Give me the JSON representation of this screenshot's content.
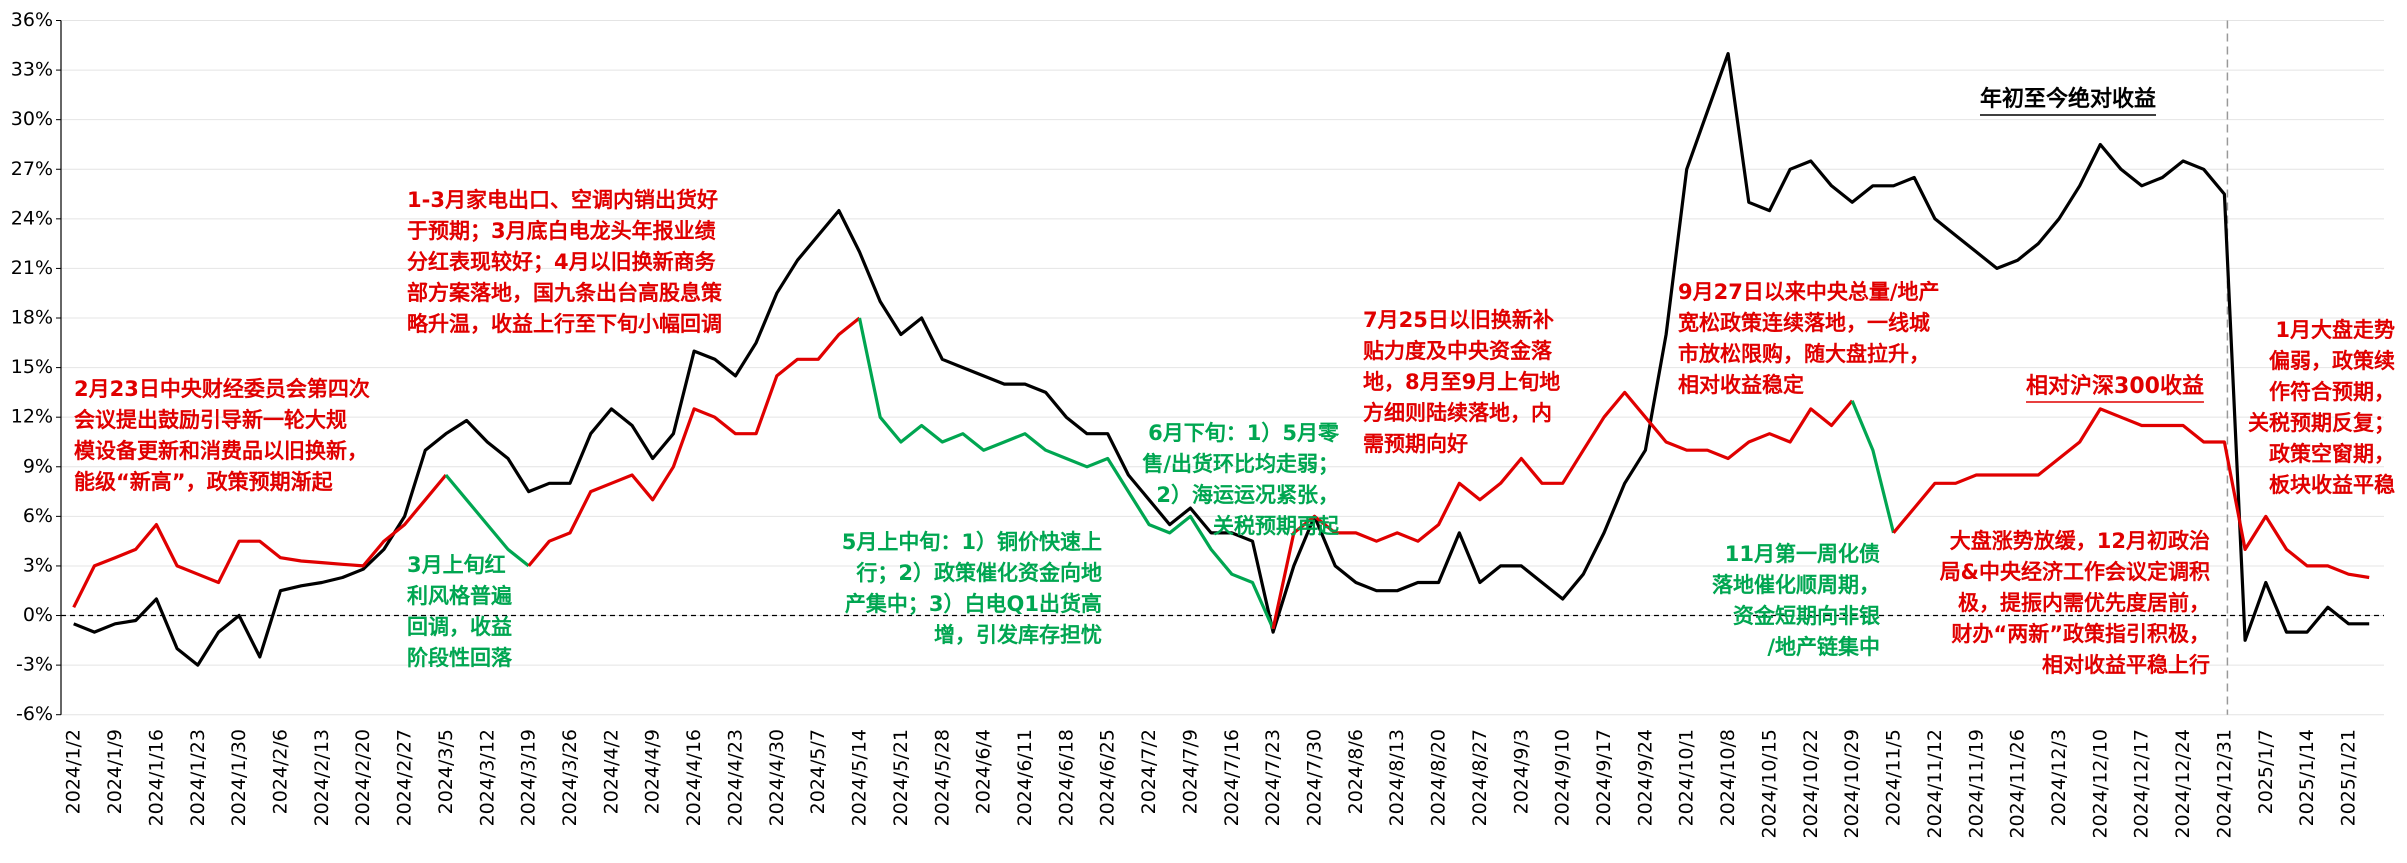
{
  "chart_data": {
    "type": "line",
    "categories": [
      "2024/1/2",
      null,
      "2024/1/9",
      null,
      "2024/1/16",
      null,
      "2024/1/23",
      null,
      "2024/1/30",
      null,
      "2024/2/6",
      null,
      "2024/2/13",
      null,
      "2024/2/20",
      null,
      "2024/2/27",
      null,
      "2024/3/5",
      null,
      "2024/3/12",
      null,
      "2024/3/19",
      null,
      "2024/3/26",
      null,
      "2024/4/2",
      null,
      "2024/4/9",
      null,
      "2024/4/16",
      null,
      "2024/4/23",
      null,
      "2024/4/30",
      null,
      "2024/5/7",
      null,
      "2024/5/14",
      null,
      "2024/5/21",
      null,
      "2024/5/28",
      null,
      "2024/6/4",
      null,
      "2024/6/11",
      null,
      "2024/6/18",
      null,
      "2024/6/25",
      null,
      "2024/7/2",
      null,
      "2024/7/9",
      null,
      "2024/7/16",
      null,
      "2024/7/23",
      null,
      "2024/7/30",
      null,
      "2024/8/6",
      null,
      "2024/8/13",
      null,
      "2024/8/20",
      null,
      "2024/8/27",
      null,
      "2024/9/3",
      null,
      "2024/9/10",
      null,
      "2024/9/17",
      null,
      "2024/9/24",
      null,
      "2024/10/1",
      null,
      "2024/10/8",
      null,
      "2024/10/15",
      null,
      "2024/10/22",
      null,
      "2024/10/29",
      null,
      "2024/11/5",
      null,
      "2024/11/12",
      null,
      "2024/11/19",
      null,
      "2024/11/26",
      null,
      "2024/12/3",
      null,
      "2024/12/10",
      null,
      "2024/12/17",
      null,
      "2024/12/24",
      null,
      "2024/12/31",
      null,
      "2025/1/7",
      null,
      "2025/1/14",
      null,
      "2025/1/21",
      null
    ],
    "series": [
      {
        "name": "年初至今绝对收益",
        "color": "#000000",
        "values": [
          -0.5,
          -1,
          -0.5,
          -0.3,
          1,
          -2,
          -3,
          -1,
          0,
          -2.5,
          1.5,
          1.8,
          2,
          2.3,
          2.8,
          4,
          6,
          10,
          11,
          11.8,
          10.5,
          9.5,
          7.5,
          8,
          8,
          11,
          12.5,
          11.5,
          9.5,
          11,
          16,
          15.5,
          14.5,
          16.5,
          19.5,
          21.5,
          23,
          24.5,
          22,
          19,
          17,
          18,
          15.5,
          15,
          14.5,
          14,
          14,
          13.5,
          12,
          11,
          11,
          8.5,
          7,
          5.5,
          6.5,
          5,
          5,
          4.5,
          -1,
          3,
          6,
          3,
          2,
          1.5,
          1.5,
          2,
          2,
          5,
          2,
          3,
          3,
          2,
          1,
          2.5,
          5,
          8,
          10,
          17,
          27,
          30.5,
          34,
          25,
          24.5,
          27,
          27.5,
          26,
          25,
          26,
          26,
          26.5,
          24,
          23,
          22,
          21,
          21.5,
          22.5,
          24,
          26,
          28.5,
          27,
          26,
          26.5,
          27.5,
          27,
          25.5,
          -1.5,
          2,
          -1,
          -1,
          0.5,
          -0.5,
          -0.5
        ]
      },
      {
        "name": "相对沪深300收益",
        "color": "#e00000",
        "values": [
          0.5,
          3,
          3.5,
          4,
          5.5,
          3,
          2.5,
          2,
          4.5,
          4.5,
          3.5,
          3.3,
          3.2,
          3.1,
          3,
          4.5,
          5.5,
          7,
          8.5,
          7,
          5.5,
          4,
          3,
          4.5,
          5,
          7.5,
          8,
          8.5,
          7,
          9,
          12.5,
          12,
          11,
          11,
          14.5,
          15.5,
          15.5,
          17,
          18,
          12,
          10.5,
          11.5,
          10.5,
          11,
          10,
          10.5,
          11,
          10,
          9.5,
          9,
          9.5,
          7.5,
          5.5,
          5,
          6,
          4,
          2.5,
          2,
          -0.8,
          5,
          6,
          5,
          5,
          4.5,
          5,
          4.5,
          5.5,
          8,
          7,
          8,
          9.5,
          8,
          8,
          10,
          12,
          13.5,
          12,
          10.5,
          10,
          10,
          9.5,
          10.5,
          11,
          10.5,
          12.5,
          11.5,
          13,
          10,
          5,
          6.5,
          8,
          8,
          8.5,
          8.5,
          8.5,
          8.5,
          9.5,
          10.5,
          12.5,
          12,
          11.5,
          11.5,
          11.5,
          10.5,
          10.5,
          4,
          6,
          4,
          3,
          3,
          2.5,
          2.3
        ],
        "point_colors": [
          "#e00000",
          "#e00000",
          "#e00000",
          "#e00000",
          "#e00000",
          "#e00000",
          "#e00000",
          "#e00000",
          "#e00000",
          "#e00000",
          "#e00000",
          "#e00000",
          "#e00000",
          "#e00000",
          "#e00000",
          "#e00000",
          "#e00000",
          "#e00000",
          "#e00000",
          "#00a651",
          "#00a651",
          "#00a651",
          "#00a651",
          "#e00000",
          "#e00000",
          "#e00000",
          "#e00000",
          "#e00000",
          "#e00000",
          "#e00000",
          "#e00000",
          "#e00000",
          "#e00000",
          "#e00000",
          "#e00000",
          "#e00000",
          "#e00000",
          "#e00000",
          "#e00000",
          "#00a651",
          "#00a651",
          "#00a651",
          "#00a651",
          "#00a651",
          "#00a651",
          "#00a651",
          "#00a651",
          "#00a651",
          "#00a651",
          "#00a651",
          "#00a651",
          "#00a651",
          "#00a651",
          "#00a651",
          "#00a651",
          "#00a651",
          "#00a651",
          "#00a651",
          "#00a651",
          "#e00000",
          "#e00000",
          "#e00000",
          "#e00000",
          "#e00000",
          "#e00000",
          "#e00000",
          "#e00000",
          "#e00000",
          "#e00000",
          "#e00000",
          "#e00000",
          "#e00000",
          "#e00000",
          "#e00000",
          "#e00000",
          "#e00000",
          "#e00000",
          "#e00000",
          "#e00000",
          "#e00000",
          "#e00000",
          "#e00000",
          "#e00000",
          "#e00000",
          "#e00000",
          "#e00000",
          "#e00000",
          "#00a651",
          "#00a651",
          "#e00000",
          "#e00000",
          "#e00000",
          "#e00000",
          "#e00000",
          "#e00000",
          "#e00000",
          "#e00000",
          "#e00000",
          "#e00000",
          "#e00000",
          "#e00000",
          "#e00000",
          "#e00000",
          "#e00000",
          "#e00000",
          "#e00000",
          "#e00000",
          "#e00000",
          "#e00000",
          "#e00000",
          "#e00000",
          "#e00000"
        ]
      }
    ],
    "ylim": [
      -6,
      36
    ],
    "yticks": [
      {
        "value": -6,
        "label": "-6%"
      },
      {
        "value": -3,
        "label": "-3%"
      },
      {
        "value": 0,
        "label": "0%"
      },
      {
        "value": 3,
        "label": "3%"
      },
      {
        "value": 6,
        "label": "6%"
      },
      {
        "value": 9,
        "label": "9%"
      },
      {
        "value": 12,
        "label": "12%"
      },
      {
        "value": 15,
        "label": "15%"
      },
      {
        "value": 18,
        "label": "18%"
      },
      {
        "value": 21,
        "label": "21%"
      },
      {
        "value": 24,
        "label": "24%"
      },
      {
        "value": 27,
        "label": "27%"
      },
      {
        "value": 30,
        "label": "30%"
      },
      {
        "value": 33,
        "label": "33%"
      },
      {
        "value": 36,
        "label": "36%"
      }
    ],
    "grid": true,
    "zero_line": true,
    "divider": "2024/12/31",
    "annotations": [
      {
        "color": "#e00000",
        "lines": [
          "2月23日中央财经委员会第四次",
          "会议提出鼓励引导新一轮大规",
          "模设备更新和消费品以旧换新，",
          "能级“新高”，政策预期渐起"
        ]
      },
      {
        "color": "#e00000",
        "lines": [
          "1-3月家电出口、空调内销出货好",
          "于预期；3月底白电龙头年报业绩",
          "分红表现较好；4月以旧换新商务",
          "部方案落地，国九条出台高股息策",
          "略升温，收益上行至下旬小幅回调"
        ]
      },
      {
        "color": "#00a651",
        "lines": [
          "3月上旬红",
          "利风格普遍",
          "回调，收益",
          "阶段性回落"
        ]
      },
      {
        "color": "#00a651",
        "lines": [
          "5月上中旬：1）铜价快速上",
          "行；2）政策催化资金向地",
          "产集中；3）白电Q1出货高",
          "增，引发库存担忧"
        ]
      },
      {
        "color": "#00a651",
        "lines": [
          "6月下旬：1）5月零",
          "售/出货环比均走弱；",
          "2）海运运况紧张，",
          "关税预期再起"
        ]
      },
      {
        "color": "#e00000",
        "lines": [
          "7月25日以旧换新补",
          "贴力度及中央资金落",
          "地，8月至9月上旬地",
          "方细则陆续落地，内",
          "需预期向好"
        ]
      },
      {
        "color": "#e00000",
        "lines": [
          "9月27日以来中央总量/地产",
          "宽松政策连续落地，一线城",
          "市放松限购，随大盘拉升，",
          "相对收益稳定"
        ]
      },
      {
        "color": "#00a651",
        "lines": [
          "11月第一周化债",
          "落地催化顺周期，",
          "资金短期向非银",
          "/地产链集中"
        ]
      },
      {
        "color": "#e00000",
        "lines": [
          "大盘涨势放缓，12月初政治",
          "局&中央经济工作会议定调积",
          "极，提振内需优先度居前，",
          "财办“两新”政策指引积极，",
          "相对收益平稳上行"
        ]
      },
      {
        "color": "#e00000",
        "lines": [
          "1月大盘走势",
          "偏弱，政策续",
          "作符合预期，",
          "关税预期反复；",
          "政策空窗期，",
          "板块收益平稳"
        ]
      }
    ]
  }
}
